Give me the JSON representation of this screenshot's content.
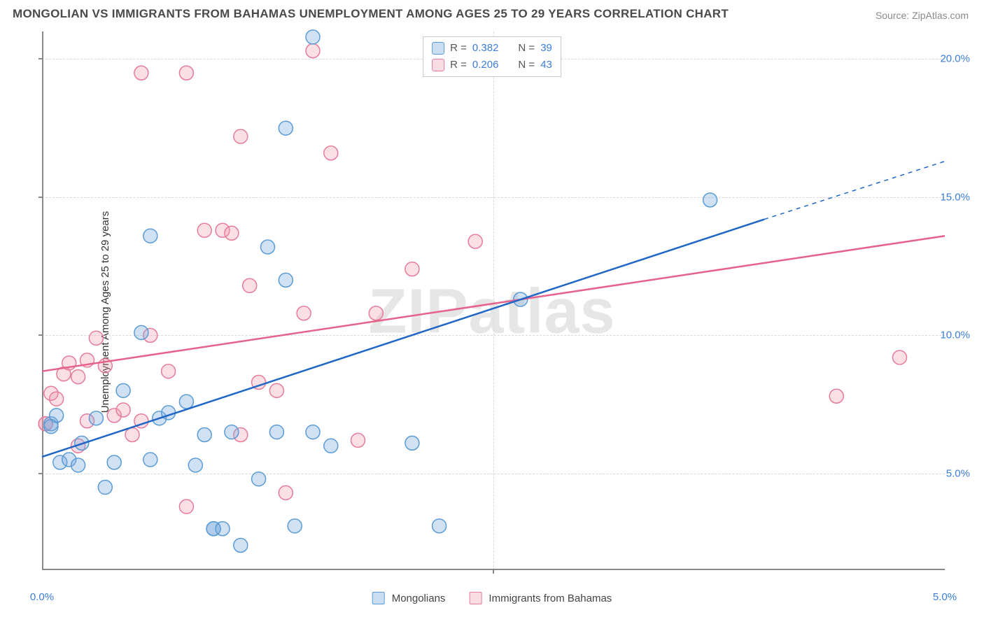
{
  "title": "MONGOLIAN VS IMMIGRANTS FROM BAHAMAS UNEMPLOYMENT AMONG AGES 25 TO 29 YEARS CORRELATION CHART",
  "source": "Source: ZipAtlas.com",
  "y_axis_label": "Unemployment Among Ages 25 to 29 years",
  "watermark": "ZIPatlas",
  "chart": {
    "type": "scatter+regression",
    "xlim": [
      0,
      5.0
    ],
    "ylim": [
      1.5,
      21.0
    ],
    "y_ticks": [
      5.0,
      10.0,
      15.0,
      20.0
    ],
    "y_tick_labels": [
      "5.0%",
      "10.0%",
      "15.0%",
      "20.0%"
    ],
    "x_ticks": [
      0.0,
      5.0
    ],
    "x_tick_labels": [
      "0.0%",
      "5.0%"
    ],
    "x_minor_tick": 2.5,
    "plot_bg": "#ffffff",
    "grid_color": "#d8d8d8",
    "axis_color": "#888888",
    "label_color": "#3b7dd8",
    "series": {
      "blue": {
        "name": "Mongolians",
        "marker_fill": "rgba(120,170,222,0.35)",
        "marker_stroke": "#5a9bd5",
        "marker_r": 10,
        "line_color": "#1f66c7",
        "line_width": 2.5,
        "R": "0.382",
        "N": "39",
        "regression": {
          "x1": 0.0,
          "y1": 5.6,
          "x2": 4.0,
          "y2": 14.2,
          "x2_dash": 5.0,
          "y2_dash": 16.3
        },
        "points": [
          [
            0.05,
            6.8
          ],
          [
            0.05,
            6.7
          ],
          [
            0.08,
            7.1
          ],
          [
            0.1,
            5.4
          ],
          [
            0.15,
            5.5
          ],
          [
            0.2,
            5.3
          ],
          [
            0.22,
            6.1
          ],
          [
            0.3,
            7.0
          ],
          [
            0.35,
            4.5
          ],
          [
            0.4,
            5.4
          ],
          [
            0.45,
            8.0
          ],
          [
            0.55,
            10.1
          ],
          [
            0.6,
            13.6
          ],
          [
            0.6,
            5.5
          ],
          [
            0.65,
            7.0
          ],
          [
            0.7,
            7.2
          ],
          [
            0.8,
            7.6
          ],
          [
            0.85,
            5.3
          ],
          [
            0.9,
            6.4
          ],
          [
            0.95,
            3.0
          ],
          [
            0.95,
            3.0
          ],
          [
            1.0,
            3.0
          ],
          [
            1.05,
            6.5
          ],
          [
            1.1,
            2.4
          ],
          [
            1.2,
            4.8
          ],
          [
            1.25,
            13.2
          ],
          [
            1.3,
            6.5
          ],
          [
            1.35,
            12.0
          ],
          [
            1.35,
            17.5
          ],
          [
            1.4,
            3.1
          ],
          [
            1.5,
            20.8
          ],
          [
            1.5,
            6.5
          ],
          [
            1.6,
            6.0
          ],
          [
            2.05,
            6.1
          ],
          [
            2.2,
            3.1
          ],
          [
            2.65,
            11.3
          ],
          [
            3.7,
            14.9
          ]
        ]
      },
      "pink": {
        "name": "Immigrants from Bahamas",
        "marker_fill": "rgba(240,150,175,0.3)",
        "marker_stroke": "#e67b9a",
        "marker_r": 10,
        "line_color": "#e6628a",
        "line_width": 2.5,
        "R": "0.206",
        "N": "43",
        "regression": {
          "x1": 0.0,
          "y1": 8.7,
          "x2": 5.0,
          "y2": 13.6
        },
        "points": [
          [
            0.02,
            6.8
          ],
          [
            0.02,
            6.8
          ],
          [
            0.05,
            7.9
          ],
          [
            0.08,
            7.7
          ],
          [
            0.12,
            8.6
          ],
          [
            0.15,
            9.0
          ],
          [
            0.2,
            6.0
          ],
          [
            0.2,
            8.5
          ],
          [
            0.25,
            6.9
          ],
          [
            0.25,
            9.1
          ],
          [
            0.3,
            9.9
          ],
          [
            0.35,
            8.9
          ],
          [
            0.4,
            7.1
          ],
          [
            0.45,
            7.3
          ],
          [
            0.5,
            6.4
          ],
          [
            0.55,
            6.9
          ],
          [
            0.55,
            19.5
          ],
          [
            0.6,
            10.0
          ],
          [
            0.7,
            8.7
          ],
          [
            0.8,
            19.5
          ],
          [
            0.8,
            3.8
          ],
          [
            0.9,
            13.8
          ],
          [
            1.0,
            13.8
          ],
          [
            1.05,
            13.7
          ],
          [
            1.1,
            17.2
          ],
          [
            1.1,
            6.4
          ],
          [
            1.15,
            11.8
          ],
          [
            1.2,
            8.3
          ],
          [
            1.3,
            8.0
          ],
          [
            1.35,
            4.3
          ],
          [
            1.45,
            10.8
          ],
          [
            1.5,
            20.3
          ],
          [
            1.6,
            16.6
          ],
          [
            1.75,
            6.2
          ],
          [
            1.85,
            10.8
          ],
          [
            2.05,
            12.4
          ],
          [
            2.4,
            13.4
          ],
          [
            4.4,
            7.8
          ],
          [
            4.75,
            9.2
          ]
        ]
      }
    },
    "legend_top_labels": {
      "R": "R =",
      "N": "N ="
    },
    "legend_bottom_labels": {
      "blue": "Mongolians",
      "pink": "Immigrants from Bahamas"
    }
  }
}
